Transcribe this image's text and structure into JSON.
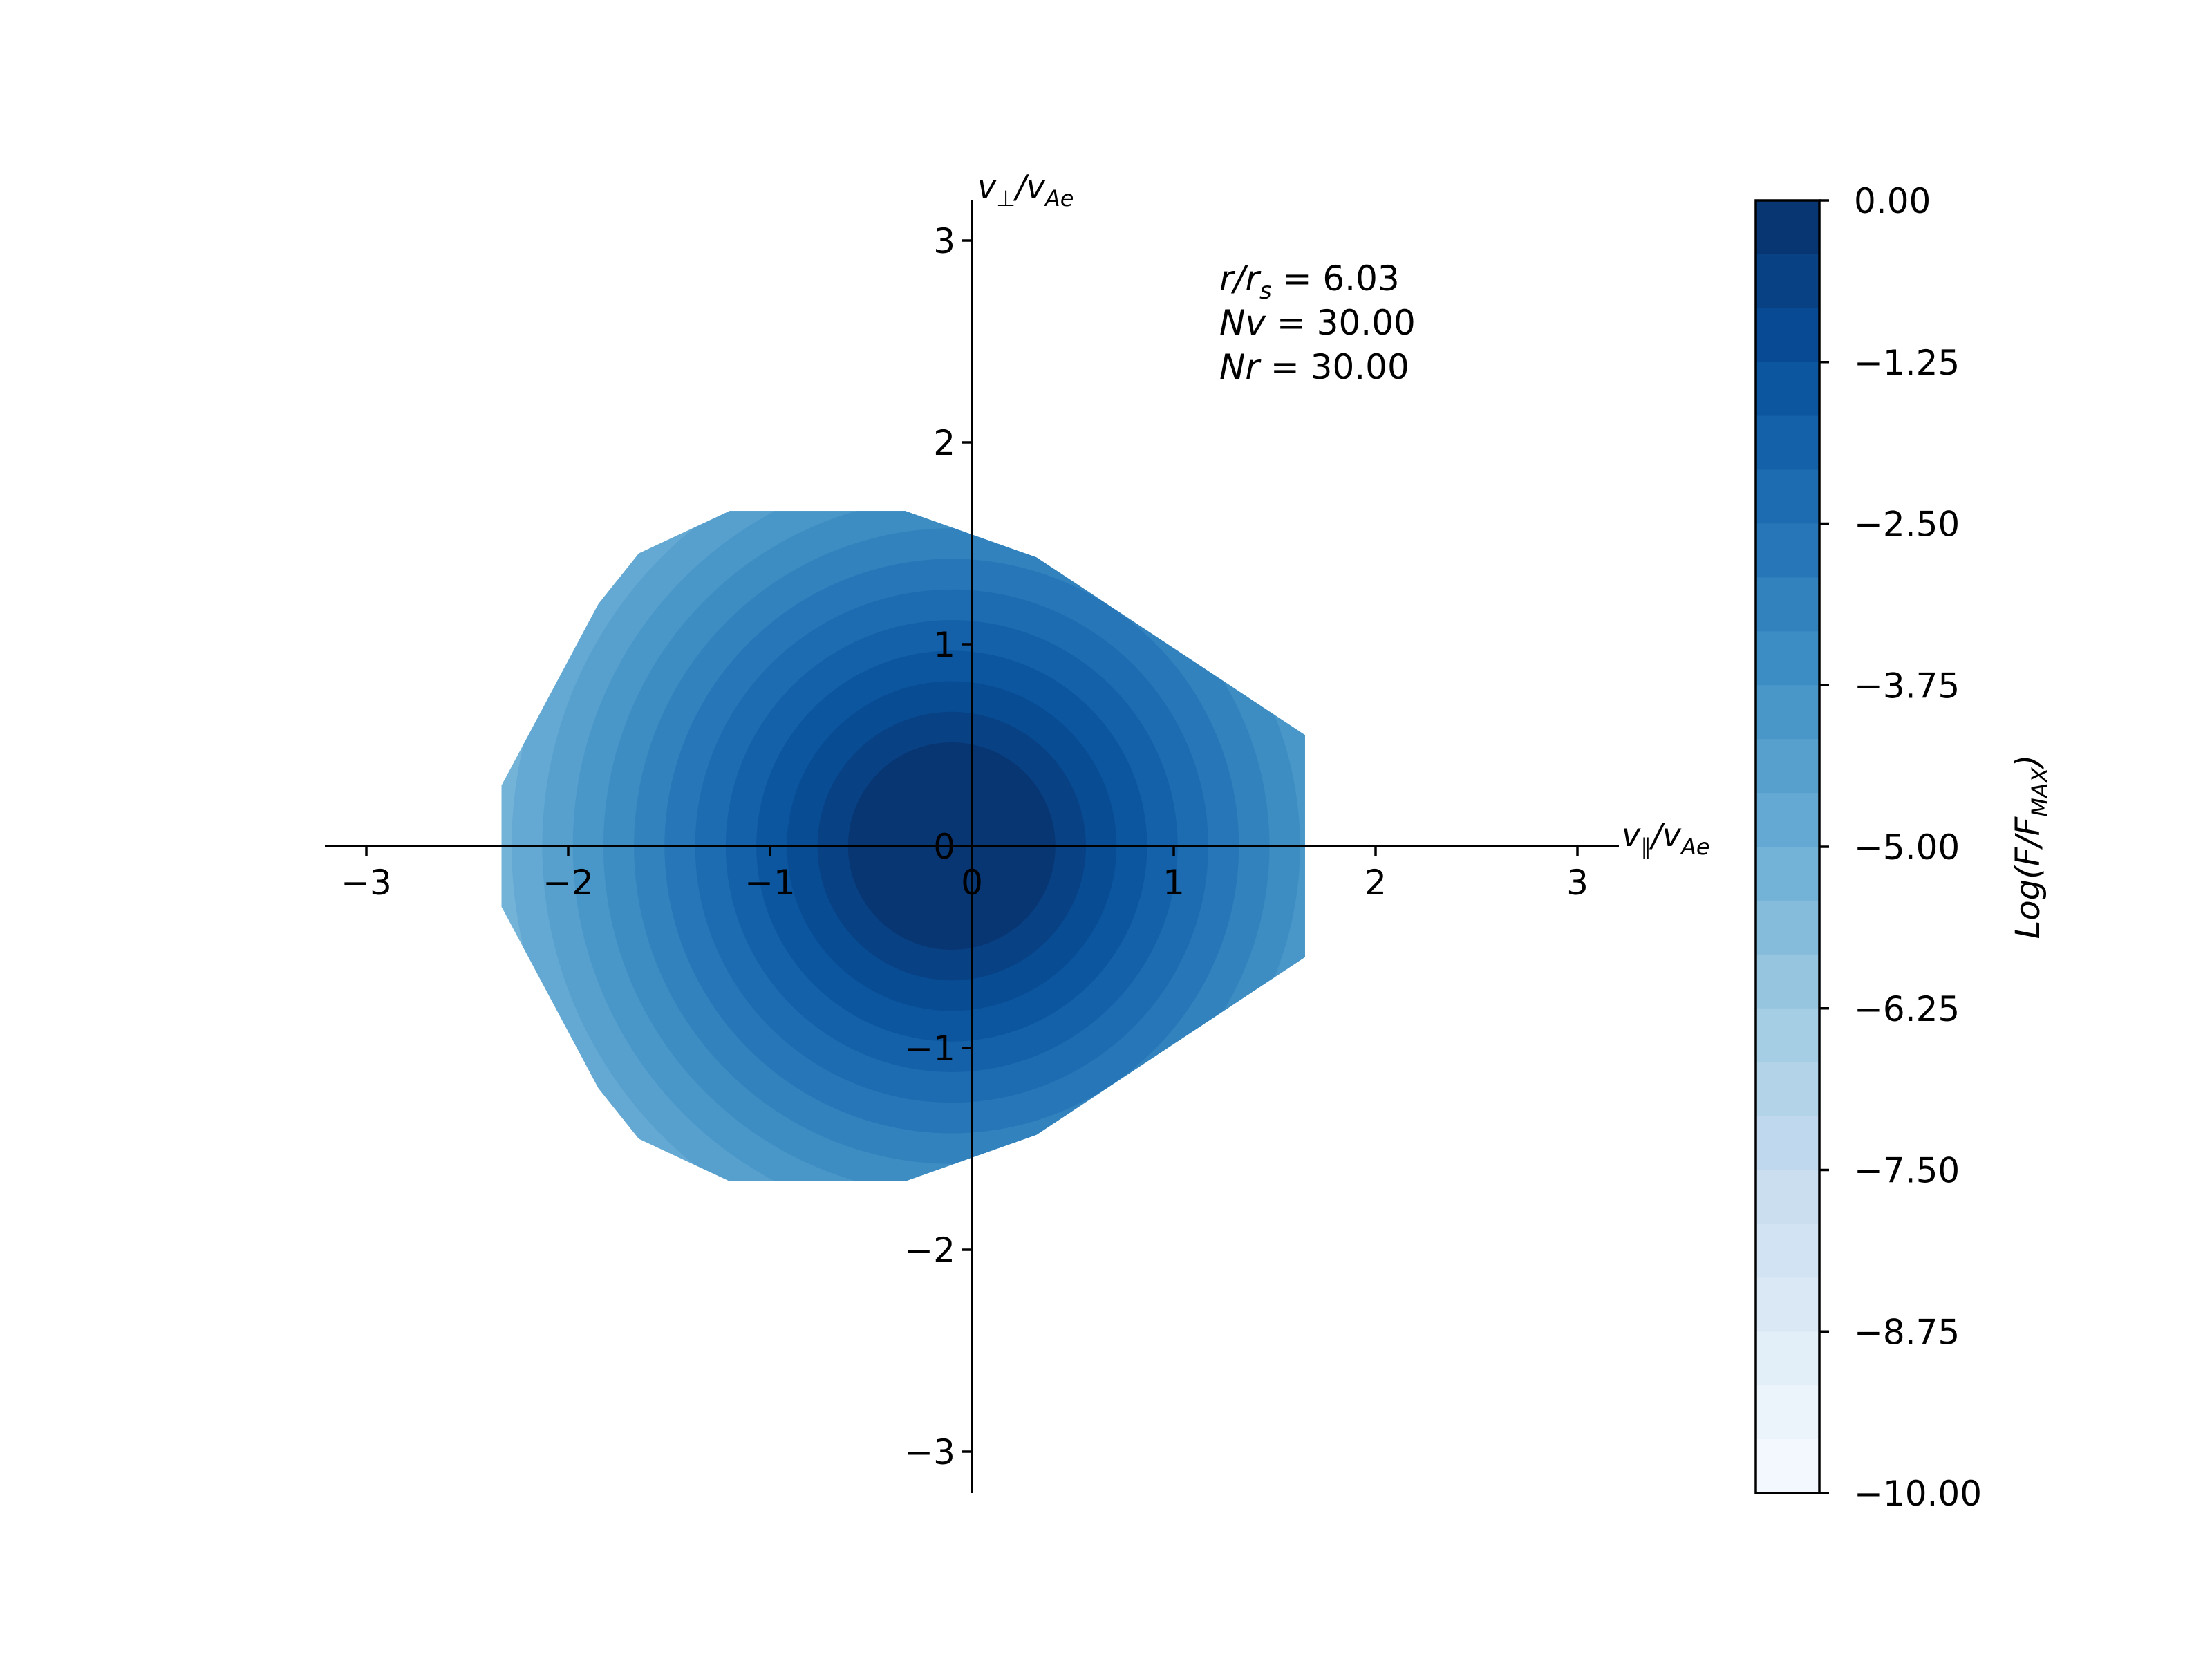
{
  "chart_data": {
    "type": "heatmap",
    "subtype": "filled-contour",
    "x_axis": {
      "label_main": "v",
      "label_sub1": "∥",
      "label_slash": "/v",
      "label_sub2": "Ae",
      "ticks": [
        "−3",
        "−2",
        "−1",
        "0",
        "1",
        "2",
        "3"
      ],
      "tick_values": [
        -3,
        -2,
        -1,
        0,
        1,
        2,
        3
      ],
      "range": [
        -3.2,
        3.2
      ]
    },
    "y_axis": {
      "label_main": "v",
      "label_sub1": "⊥",
      "label_slash": "/v",
      "label_sub2": "Ae",
      "ticks": [
        "3",
        "2",
        "1",
        "0",
        "−1",
        "−2",
        "−3"
      ],
      "tick_values": [
        3,
        2,
        1,
        0,
        -1,
        -2,
        -3
      ],
      "range": [
        -3.2,
        3.2
      ]
    },
    "annotations": [
      {
        "lhs": "r/r",
        "sub": "s",
        "rhs": " = 6.03"
      },
      {
        "lhs": "Nv",
        "sub": "",
        "rhs": " = 30.00"
      },
      {
        "lhs": "Nr",
        "sub": "",
        "rhs": " = 30.00"
      }
    ],
    "distribution": {
      "description": "log10 of normalized distribution, peaked at origin, slightly drifted negative along v_parallel",
      "center": [
        -0.1,
        0.0
      ],
      "log_drop_per_unit_radius": 2.75,
      "extent_points": [
        [
          -2.33,
          0.3
        ],
        [
          -2.33,
          -0.3
        ],
        [
          -2.1,
          0.5
        ],
        [
          -2.1,
          -0.5
        ],
        [
          -1.85,
          1.2
        ],
        [
          -1.85,
          -1.2
        ],
        [
          -1.65,
          1.45
        ],
        [
          -1.65,
          -1.45
        ],
        [
          -1.2,
          1.66
        ],
        [
          -1.2,
          -1.66
        ],
        [
          -0.33,
          1.66
        ],
        [
          -0.33,
          -1.66
        ],
        [
          0.0,
          1.43
        ],
        [
          0.0,
          -1.43
        ],
        [
          0.32,
          1.43
        ],
        [
          0.32,
          -1.43
        ],
        [
          0.57,
          1.2
        ],
        [
          0.57,
          -1.2
        ],
        [
          0.97,
          1.0
        ],
        [
          0.97,
          -1.0
        ],
        [
          1.65,
          0.55
        ],
        [
          1.65,
          -0.55
        ]
      ]
    },
    "colorbar": {
      "label_prefix": "Log(F/F",
      "label_sub": "MAX",
      "label_suffix": ")",
      "min": -10.0,
      "max": 0.0,
      "levels": 24,
      "ticks": [
        "0.00",
        "−1.25",
        "−2.50",
        "−3.75",
        "−5.00",
        "−6.25",
        "−7.50",
        "−8.75",
        "−10.00"
      ],
      "tick_values": [
        0,
        -1.25,
        -2.5,
        -3.75,
        -5,
        -6.25,
        -7.5,
        -8.75,
        -10
      ],
      "colormap": "Blues"
    }
  }
}
